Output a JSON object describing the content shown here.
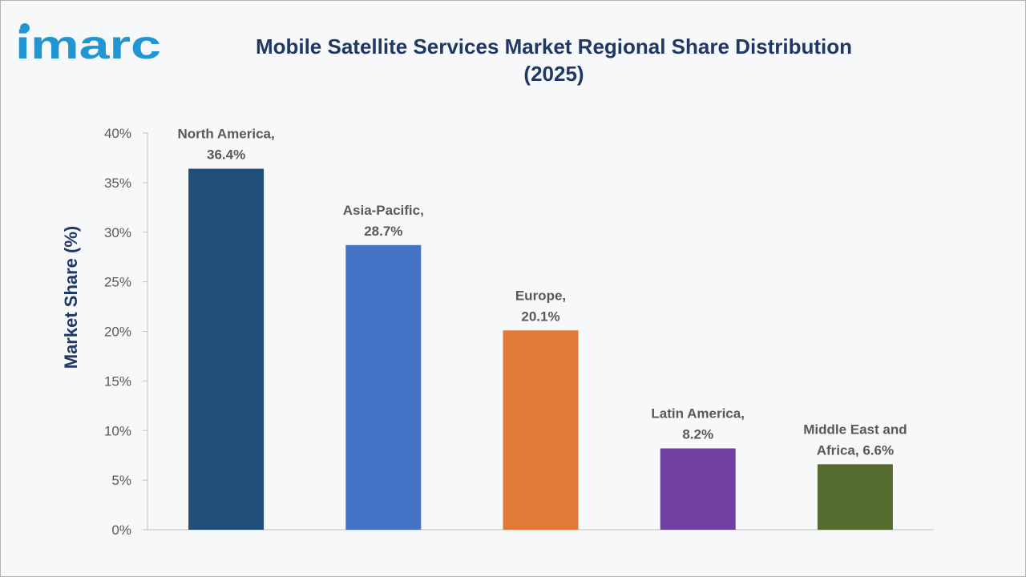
{
  "logo": {
    "text": "imarc",
    "color": "#2196d3"
  },
  "title_line1": "Mobile Satellite Services Market Regional Share Distribution",
  "title_line2": "(2025)",
  "chart_data": {
    "type": "bar",
    "title": "Mobile Satellite Services Market Regional Share Distribution (2025)",
    "xlabel": "",
    "ylabel": "Market Share (%)",
    "ylim": [
      0,
      40
    ],
    "yticks": [
      "0%",
      "5%",
      "10%",
      "15%",
      "20%",
      "25%",
      "30%",
      "35%",
      "40%"
    ],
    "ytick_values": [
      0,
      5,
      10,
      15,
      20,
      25,
      30,
      35,
      40
    ],
    "categories": [
      "North America",
      "Asia-Pacific",
      "Europe",
      "Latin America",
      "Middle East and Africa"
    ],
    "values": [
      36.4,
      28.7,
      20.1,
      8.2,
      6.6
    ],
    "data_labels": [
      [
        "North America,",
        "36.4%"
      ],
      [
        "Asia-Pacific,",
        "28.7%"
      ],
      [
        "Europe,",
        "20.1%"
      ],
      [
        "Latin America,",
        "8.2%"
      ],
      [
        "Middle East and",
        "Africa, 6.6%"
      ]
    ],
    "colors": [
      "#1f4e79",
      "#4472c4",
      "#e07b39",
      "#7040a0",
      "#556b2f"
    ],
    "grid": false,
    "legend": "none"
  }
}
